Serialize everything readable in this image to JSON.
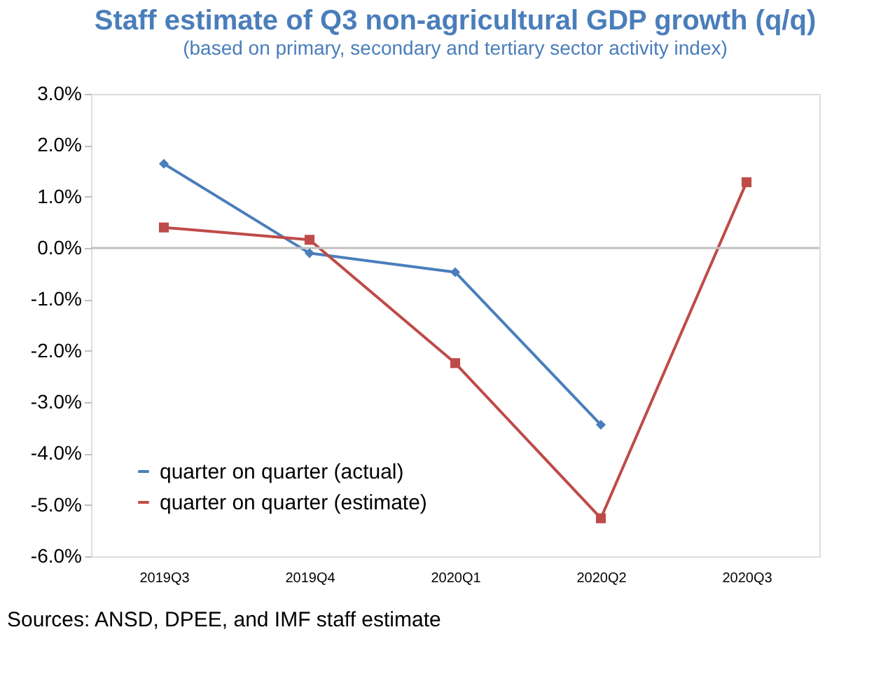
{
  "chart_data": {
    "type": "line",
    "title": "Staff estimate of Q3 non-agricultural GDP growth (q/q)",
    "subtitle": "(based on primary, secondary and tertiary sector activity index)",
    "categories": [
      "2019Q3",
      "2019Q4",
      "2020Q1",
      "2020Q2",
      "2020Q3"
    ],
    "series": [
      {
        "name": "quarter on quarter (actual)",
        "color": "#4a7ebb",
        "marker": "diamond",
        "values": [
          1.64,
          -0.1,
          -0.47,
          -3.44,
          null
        ]
      },
      {
        "name": "quarter on quarter (estimate)",
        "color": "#be4b48",
        "marker": "square",
        "values": [
          0.4,
          0.16,
          -2.24,
          -5.26,
          1.28
        ]
      }
    ],
    "ylim": [
      -6,
      3
    ],
    "yticks": [
      {
        "value": 3,
        "label": "3.0%"
      },
      {
        "value": 2,
        "label": "2.0%"
      },
      {
        "value": 1,
        "label": "1.0%"
      },
      {
        "value": 0,
        "label": "0.0%"
      },
      {
        "value": -1,
        "label": "-1.0%"
      },
      {
        "value": -2,
        "label": "-2.0%"
      },
      {
        "value": -3,
        "label": "-3.0%"
      },
      {
        "value": -4,
        "label": "-4.0%"
      },
      {
        "value": -5,
        "label": "-5.0%"
      },
      {
        "value": -6,
        "label": "-6.0%"
      }
    ],
    "ref_lines": [
      {
        "axis": "y",
        "value": 0,
        "color": "#bfbfbf"
      }
    ],
    "grid": false,
    "legend": "bottom left",
    "line_style": "solid",
    "annotations": [
      "Sources: ANSD, DPEE, and IMF staff estimate"
    ]
  }
}
